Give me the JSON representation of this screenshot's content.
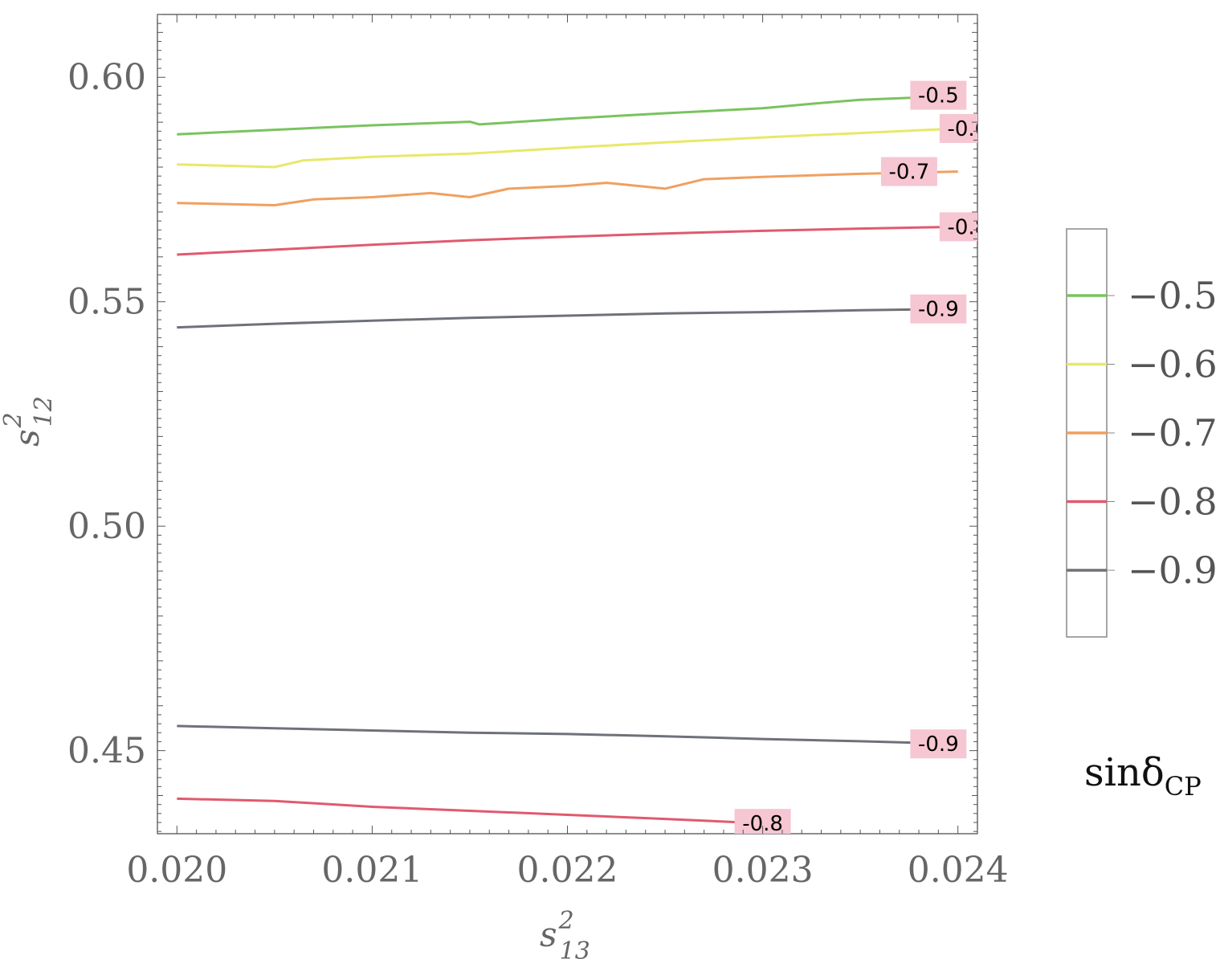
{
  "chart_data": {
    "type": "line",
    "subtype": "contour",
    "xlabel": {
      "base": "s",
      "sup": "2",
      "sub": "13"
    },
    "ylabel": {
      "base": "s",
      "sup": "2",
      "sub": "12"
    },
    "xlim": [
      0.0199,
      0.0241
    ],
    "ylim": [
      0.4315,
      0.614
    ],
    "x_ticks": [
      0.02,
      0.021,
      0.022,
      0.023,
      0.024
    ],
    "x_tick_labels": [
      "0.020",
      "0.021",
      "0.022",
      "0.023",
      "0.024"
    ],
    "y_ticks": [
      0.45,
      0.5,
      0.55,
      0.6
    ],
    "y_tick_labels": [
      "0.45",
      "0.50",
      "0.55",
      "0.60"
    ],
    "grid": false,
    "legend": {
      "placement": "right",
      "title": {
        "base": "sinδ",
        "sub": "CP"
      },
      "entries": [
        {
          "label": "−0.5",
          "color": "#7ac35e"
        },
        {
          "label": "−0.6",
          "color": "#e8e86a"
        },
        {
          "label": "−0.7",
          "color": "#f0a060"
        },
        {
          "label": "−0.8",
          "color": "#e05a6e"
        },
        {
          "label": "−0.9",
          "color": "#6e7278"
        }
      ]
    },
    "label_background": "#f6c6d2",
    "series": [
      {
        "name": "-0.5",
        "label": "-0.5",
        "color": "#7ac35e",
        "x": [
          0.02,
          0.0205,
          0.021,
          0.0215,
          0.02155,
          0.022,
          0.0225,
          0.023,
          0.02325,
          0.0235,
          0.0238,
          0.024
        ],
        "y": [
          0.5873,
          0.5883,
          0.5893,
          0.5901,
          0.5895,
          0.5908,
          0.592,
          0.5931,
          0.5941,
          0.595,
          0.5955,
          0.596
        ],
        "label_at": [
          0.0239,
          0.596
        ]
      },
      {
        "name": "-0.6",
        "label": "-0.6",
        "color": "#e8e86a",
        "x": [
          0.02,
          0.0205,
          0.02065,
          0.021,
          0.0215,
          0.022,
          0.0225,
          0.023,
          0.0235,
          0.024
        ],
        "y": [
          0.5806,
          0.58,
          0.5815,
          0.5823,
          0.583,
          0.5843,
          0.5855,
          0.5866,
          0.5876,
          0.5886
        ],
        "label_at": [
          0.02405,
          0.5886
        ]
      },
      {
        "name": "-0.7",
        "label": "-0.7",
        "color": "#f0a060",
        "x": [
          0.02,
          0.0205,
          0.0207,
          0.021,
          0.0213,
          0.0215,
          0.0217,
          0.022,
          0.0222,
          0.0225,
          0.0227,
          0.023,
          0.0235,
          0.024
        ],
        "y": [
          0.572,
          0.5715,
          0.5728,
          0.5733,
          0.5742,
          0.5733,
          0.5752,
          0.5758,
          0.5765,
          0.5752,
          0.5773,
          0.5778,
          0.5785,
          0.579
        ],
        "label_at": [
          0.02375,
          0.579
        ]
      },
      {
        "name": "-0.8",
        "label": "-0.8",
        "color": "#e05a6e",
        "x": [
          0.02,
          0.0205,
          0.021,
          0.0215,
          0.022,
          0.0225,
          0.023,
          0.0235,
          0.024
        ],
        "y": [
          0.5605,
          0.5616,
          0.5627,
          0.5637,
          0.5645,
          0.5652,
          0.5658,
          0.5663,
          0.5667
        ],
        "label_at": [
          0.02405,
          0.5667
        ]
      },
      {
        "name": "-0.9",
        "label": "-0.9",
        "color": "#6e7278",
        "x": [
          0.02,
          0.0205,
          0.021,
          0.0215,
          0.022,
          0.0225,
          0.023,
          0.0235,
          0.024
        ],
        "y": [
          0.5443,
          0.5451,
          0.5458,
          0.5464,
          0.5469,
          0.5474,
          0.5477,
          0.5481,
          0.5484
        ],
        "label_at": [
          0.0239,
          0.5484
        ]
      },
      {
        "name": "-0.9",
        "label": "-0.9",
        "color": "#6e7278",
        "x": [
          0.02,
          0.0205,
          0.021,
          0.0215,
          0.022,
          0.0225,
          0.023,
          0.0235,
          0.024
        ],
        "y": [
          0.4555,
          0.455,
          0.4545,
          0.454,
          0.4537,
          0.4532,
          0.4526,
          0.4521,
          0.4515
        ],
        "label_at": [
          0.0239,
          0.4515
        ]
      },
      {
        "name": "-0.8",
        "label": "-0.8",
        "color": "#e05a6e",
        "x": [
          0.02,
          0.0205,
          0.021,
          0.0215,
          0.022,
          0.0225,
          0.023
        ],
        "y": [
          0.4393,
          0.4388,
          0.4375,
          0.4366,
          0.4357,
          0.4348,
          0.4338
        ],
        "label_at": [
          0.023,
          0.4338
        ]
      }
    ]
  }
}
